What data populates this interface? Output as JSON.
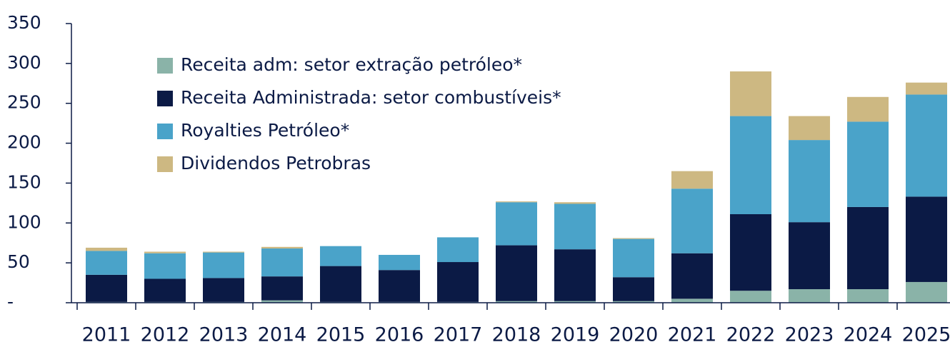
{
  "chart_data": {
    "type": "stacked_bar",
    "categories": [
      "2011",
      "2012",
      "2013",
      "2014",
      "2015",
      "2016",
      "2017",
      "2018",
      "2019",
      "2020",
      "2021",
      "2022",
      "2023",
      "2024",
      "2025"
    ],
    "series": [
      {
        "name": "Receita adm: setor extração petróleo*",
        "color": "#8ab3a8",
        "values": [
          1,
          1,
          1,
          3,
          1,
          1,
          1,
          2,
          2,
          2,
          5,
          15,
          17,
          17,
          26
        ]
      },
      {
        "name": "Receita Administrada: setor combustíveis*",
        "color": "#0b1a45",
        "values": [
          34,
          29,
          30,
          30,
          45,
          40,
          50,
          70,
          65,
          30,
          57,
          96,
          84,
          103,
          107
        ]
      },
      {
        "name": "Royalties Petróleo*",
        "color": "#4aa3c9",
        "values": [
          30,
          32,
          32,
          35,
          25,
          19,
          31,
          54,
          57,
          48,
          81,
          123,
          103,
          107,
          128
        ]
      },
      {
        "name": "Dividendos Petrobras",
        "color": "#cdb882",
        "values": [
          4,
          2,
          1,
          2,
          0,
          0,
          0,
          1,
          2,
          1,
          22,
          56,
          30,
          31,
          15
        ]
      }
    ],
    "ylim": [
      0,
      350
    ],
    "yticks": [
      {
        "value": 0,
        "label": "-"
      },
      50,
      100,
      150,
      200,
      250,
      300,
      350
    ]
  }
}
